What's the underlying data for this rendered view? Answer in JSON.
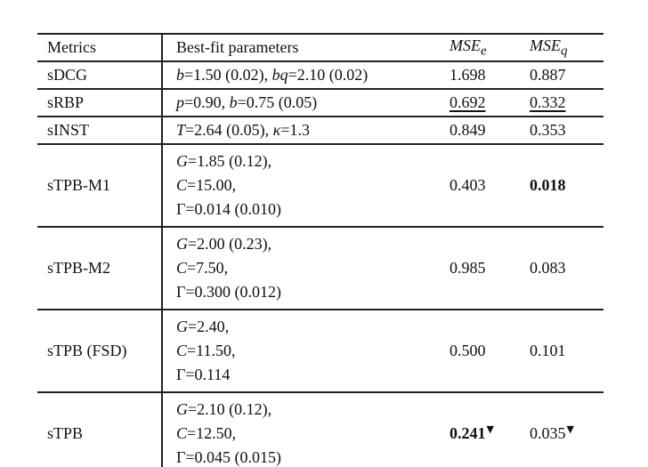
{
  "page": {
    "background_color": "#ffffff",
    "text_color": "#111111",
    "rule_color": "#222222"
  },
  "table": {
    "header": {
      "metrics": "Metrics",
      "params": "Best-fit parameters",
      "mse_label": "MSE",
      "mse_e_sub": "e",
      "mse_q_sub": "q"
    },
    "rows": [
      {
        "metric": "sDCG",
        "param_lines": [
          [
            {
              "t": "b",
              "i": true
            },
            {
              "t": "=1.50 (0.02), "
            },
            {
              "t": "bq",
              "i": true
            },
            {
              "t": "=2.10 (0.02)"
            }
          ]
        ],
        "mse_e": {
          "text": "1.698",
          "bold": false,
          "underline": false,
          "marker": ""
        },
        "mse_q": {
          "text": "0.887",
          "bold": false,
          "underline": false,
          "marker": ""
        }
      },
      {
        "metric": "sRBP",
        "param_lines": [
          [
            {
              "t": "p",
              "i": true
            },
            {
              "t": "=0.90, "
            },
            {
              "t": "b",
              "i": true
            },
            {
              "t": "=0.75 (0.05)"
            }
          ]
        ],
        "mse_e": {
          "text": "0.692",
          "bold": false,
          "underline": true,
          "marker": ""
        },
        "mse_q": {
          "text": "0.332",
          "bold": false,
          "underline": true,
          "marker": ""
        }
      },
      {
        "metric": "sINST",
        "param_lines": [
          [
            {
              "t": "T",
              "i": true
            },
            {
              "t": "=2.64 (0.05), "
            },
            {
              "t": "κ",
              "i": true
            },
            {
              "t": "=1.3"
            }
          ]
        ],
        "mse_e": {
          "text": "0.849",
          "bold": false,
          "underline": false,
          "marker": ""
        },
        "mse_q": {
          "text": "0.353",
          "bold": false,
          "underline": false,
          "marker": ""
        }
      },
      {
        "metric": "sTPB-M1",
        "param_lines": [
          [
            {
              "t": "G",
              "i": true
            },
            {
              "t": "=1.85 (0.12),"
            }
          ],
          [
            {
              "t": "C",
              "i": true
            },
            {
              "t": "=15.00,"
            }
          ],
          [
            {
              "t": "Γ",
              "i": false
            },
            {
              "t": "=0.014 (0.010)"
            }
          ]
        ],
        "mse_e": {
          "text": "0.403",
          "bold": false,
          "underline": false,
          "marker": ""
        },
        "mse_q": {
          "text": "0.018",
          "bold": true,
          "underline": false,
          "marker": ""
        }
      },
      {
        "metric": "sTPB-M2",
        "param_lines": [
          [
            {
              "t": "G",
              "i": true
            },
            {
              "t": "=2.00 (0.23),"
            }
          ],
          [
            {
              "t": "C",
              "i": true
            },
            {
              "t": "=7.50,"
            }
          ],
          [
            {
              "t": "Γ",
              "i": false
            },
            {
              "t": "=0.300 (0.012)"
            }
          ]
        ],
        "mse_e": {
          "text": "0.985",
          "bold": false,
          "underline": false,
          "marker": ""
        },
        "mse_q": {
          "text": "0.083",
          "bold": false,
          "underline": false,
          "marker": ""
        }
      },
      {
        "metric": "sTPB (FSD)",
        "param_lines": [
          [
            {
              "t": "G",
              "i": true
            },
            {
              "t": "=2.40,"
            }
          ],
          [
            {
              "t": "C",
              "i": true
            },
            {
              "t": "=11.50,"
            }
          ],
          [
            {
              "t": "Γ",
              "i": false
            },
            {
              "t": "=0.114"
            }
          ]
        ],
        "mse_e": {
          "text": "0.500",
          "bold": false,
          "underline": false,
          "marker": ""
        },
        "mse_q": {
          "text": "0.101",
          "bold": false,
          "underline": false,
          "marker": ""
        }
      },
      {
        "metric": "sTPB",
        "param_lines": [
          [
            {
              "t": "G",
              "i": true
            },
            {
              "t": "=2.10 (0.12),"
            }
          ],
          [
            {
              "t": "C",
              "i": true
            },
            {
              "t": "=12.50,"
            }
          ],
          [
            {
              "t": "Γ",
              "i": false
            },
            {
              "t": "=0.045 (0.015)"
            }
          ]
        ],
        "mse_e": {
          "text": "0.241",
          "bold": true,
          "underline": false,
          "marker": "▼"
        },
        "mse_q": {
          "text": "0.035",
          "bold": false,
          "underline": false,
          "marker": "▼"
        }
      }
    ]
  }
}
